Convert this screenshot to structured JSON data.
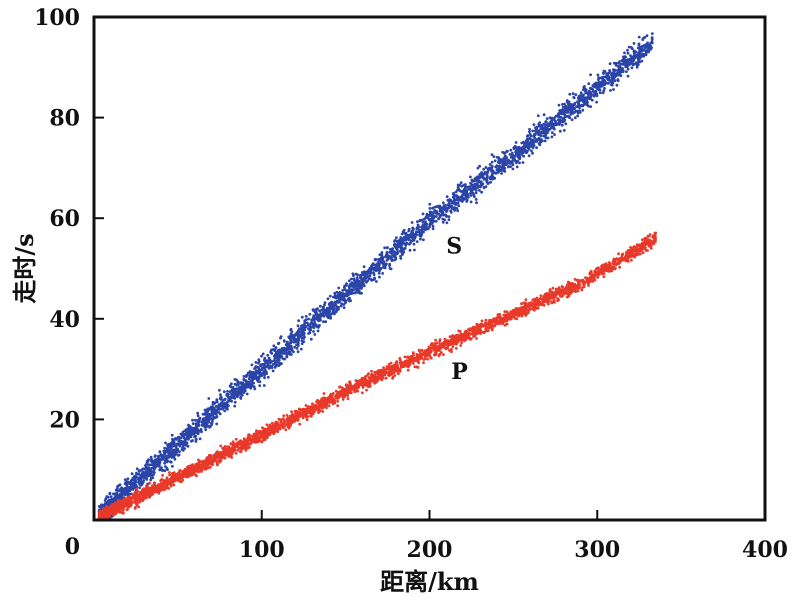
{
  "chart_data": {
    "type": "scatter",
    "title": "",
    "xlabel": "距离/km",
    "ylabel": "走时/s",
    "xlim": [
      0,
      400
    ],
    "ylim": [
      0,
      100
    ],
    "xticks": [
      0,
      100,
      200,
      300,
      400
    ],
    "yticks": [
      0,
      20,
      40,
      60,
      80,
      100
    ],
    "grid": false,
    "series": [
      {
        "name": "S",
        "color": "#2a44a8",
        "label_at": [
          210,
          53
        ],
        "x_range": [
          3,
          333
        ],
        "trend": [
          [
            0,
            0
          ],
          [
            50,
            15
          ],
          [
            100,
            30
          ],
          [
            150,
            45
          ],
          [
            200,
            59.5
          ],
          [
            250,
            72.5
          ],
          [
            300,
            86
          ],
          [
            333,
            95
          ]
        ],
        "spread": 1.8
      },
      {
        "name": "P",
        "color": "#e8392a",
        "label_at": [
          213,
          28
        ],
        "x_range": [
          3,
          335
        ],
        "trend": [
          [
            0,
            0
          ],
          [
            50,
            8.5
          ],
          [
            100,
            17
          ],
          [
            150,
            25.5
          ],
          [
            200,
            33.5
          ],
          [
            250,
            41
          ],
          [
            290,
            47
          ],
          [
            335,
            56
          ]
        ],
        "spread": 1.0
      }
    ]
  }
}
